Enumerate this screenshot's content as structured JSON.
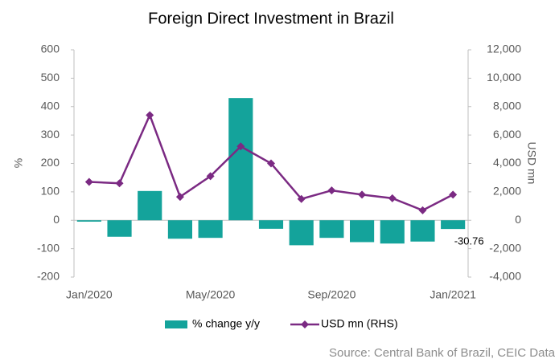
{
  "chart_data": {
    "type": "combo",
    "title": "Foreign Direct Investment in Brazil",
    "source": "Source: Central Bank of Brazil, CEIC Data",
    "y_label": "%",
    "y2_label": "USD mn",
    "categories": [
      "Jan/2020",
      null,
      null,
      null,
      "May/2020",
      null,
      null,
      null,
      "Sep/2020",
      null,
      null,
      null,
      "Jan/2021"
    ],
    "series": [
      {
        "name": "% change y/y",
        "type": "bar",
        "color": "#14a39b",
        "values": [
          -5,
          -58,
          103,
          -65,
          -62,
          430,
          -30,
          -88,
          -62,
          -77,
          -82,
          -75,
          -30.76
        ],
        "value_labels": [
          null,
          null,
          null,
          null,
          null,
          null,
          null,
          null,
          null,
          null,
          null,
          null,
          "-30.76"
        ]
      },
      {
        "name": "USD mn (RHS)",
        "type": "line",
        "axis": "y2",
        "color": "#7b2a83",
        "values": [
          2700,
          2600,
          7400,
          1650,
          3100,
          5200,
          4000,
          1500,
          2100,
          1800,
          1550,
          700,
          1800
        ]
      }
    ],
    "ylim": [
      -200,
      600
    ],
    "yticks": [
      -200,
      -100,
      0,
      100,
      200,
      300,
      400,
      500,
      600
    ],
    "y2lim": [
      -4000,
      12000
    ],
    "y2ticks": [
      {
        "value": -4000,
        "label": "-4,000"
      },
      {
        "value": -2000,
        "label": "-2,000"
      },
      0,
      {
        "value": 2000,
        "label": "2,000"
      },
      {
        "value": 4000,
        "label": "4,000"
      },
      {
        "value": 6000,
        "label": "6,000"
      },
      {
        "value": 8000,
        "label": "8,000"
      },
      {
        "value": 10000,
        "label": "10,000"
      },
      {
        "value": 12000,
        "label": "12,000"
      }
    ],
    "grid": false,
    "legend": "bottom"
  }
}
